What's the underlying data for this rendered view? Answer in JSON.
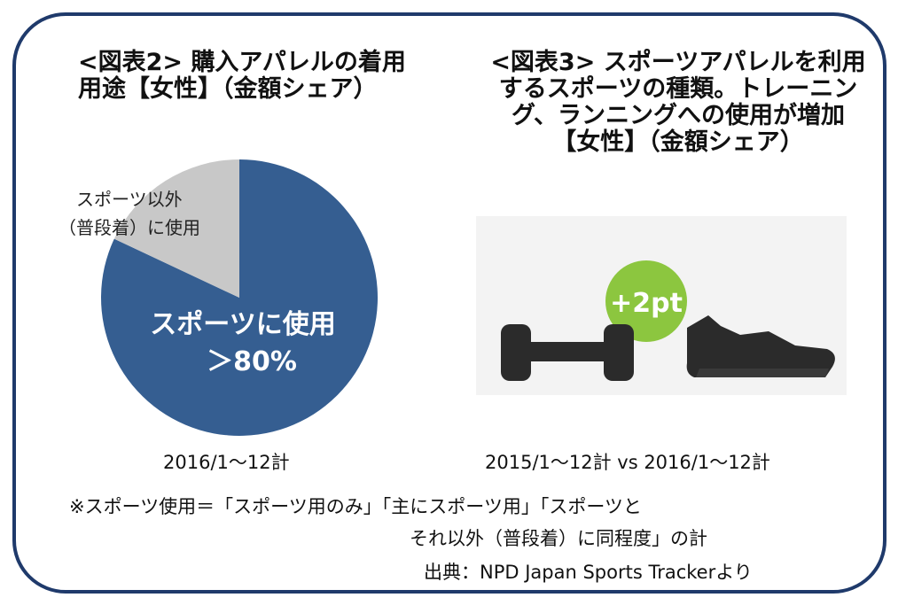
{
  "left_panel": {
    "title_line1": "<図表2> 購入アパレルの着用",
    "title_line2": "用途【女性】（金額シェア）",
    "caption": "2016/1～12計"
  },
  "right_panel": {
    "title_line1": "<図表3> スポーツアパレルを利用",
    "title_line2": "するスポーツの種類。トレーニン",
    "title_line3": "グ、ランニングへの使用が増加",
    "title_line4": "【女性】（金額シェア）",
    "badge": "+2pt",
    "caption": "2015/1～12計 vs 2016/1～12計",
    "icons": [
      "dumbbell-icon",
      "running-shoe-icon"
    ]
  },
  "note_line1": "※スポーツ使用＝「スポーツ用のみ」「主にスポーツ用」「スポーツと",
  "note_line2": "それ以外（普段着）に同程度」の計",
  "source": "出典：NPD Japan Sports Trackerより",
  "colors": {
    "frame": "#1f3a6b",
    "sports": "#355e91",
    "other": "#c8c8c8",
    "badge": "#8cc63f",
    "icon": "#2b2b2b"
  },
  "chart_data": {
    "type": "pie",
    "slices": [
      {
        "label_line1": "スポーツに使用",
        "label_line2": "＞80%",
        "value": 82
      },
      {
        "label_line1": "スポーツ以外",
        "label_line2": "（普段着）に使用",
        "value": 18
      }
    ]
  }
}
